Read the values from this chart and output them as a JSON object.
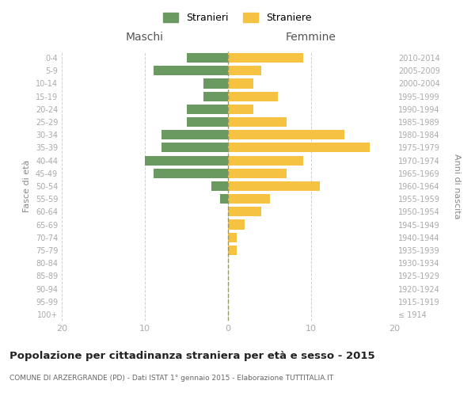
{
  "age_groups": [
    "100+",
    "95-99",
    "90-94",
    "85-89",
    "80-84",
    "75-79",
    "70-74",
    "65-69",
    "60-64",
    "55-59",
    "50-54",
    "45-49",
    "40-44",
    "35-39",
    "30-34",
    "25-29",
    "20-24",
    "15-19",
    "10-14",
    "5-9",
    "0-4"
  ],
  "birth_years": [
    "≤ 1914",
    "1915-1919",
    "1920-1924",
    "1925-1929",
    "1930-1934",
    "1935-1939",
    "1940-1944",
    "1945-1949",
    "1950-1954",
    "1955-1959",
    "1960-1964",
    "1965-1969",
    "1970-1974",
    "1975-1979",
    "1980-1984",
    "1985-1989",
    "1990-1994",
    "1995-1999",
    "2000-2004",
    "2005-2009",
    "2010-2014"
  ],
  "maschi": [
    0,
    0,
    0,
    0,
    0,
    0,
    0,
    0,
    0,
    1,
    2,
    9,
    10,
    8,
    8,
    5,
    5,
    3,
    3,
    9,
    5
  ],
  "femmine": [
    0,
    0,
    0,
    0,
    0,
    1,
    1,
    2,
    4,
    5,
    11,
    7,
    9,
    17,
    14,
    7,
    3,
    6,
    3,
    4,
    9
  ],
  "maschi_color": "#6a9a5f",
  "femmine_color": "#f5c242",
  "background_color": "#ffffff",
  "grid_color": "#d0d0d0",
  "title": "Popolazione per cittadinanza straniera per età e sesso - 2015",
  "subtitle": "COMUNE DI ARZERGRANDE (PD) - Dati ISTAT 1° gennaio 2015 - Elaborazione TUTTITALIA.IT",
  "xlabel_left": "Maschi",
  "xlabel_right": "Femmine",
  "ylabel_left": "Fasce di età",
  "ylabel_right": "Anni di nascita",
  "legend_stranieri": "Stranieri",
  "legend_straniere": "Straniere",
  "xlim": 20,
  "bar_height": 0.75
}
